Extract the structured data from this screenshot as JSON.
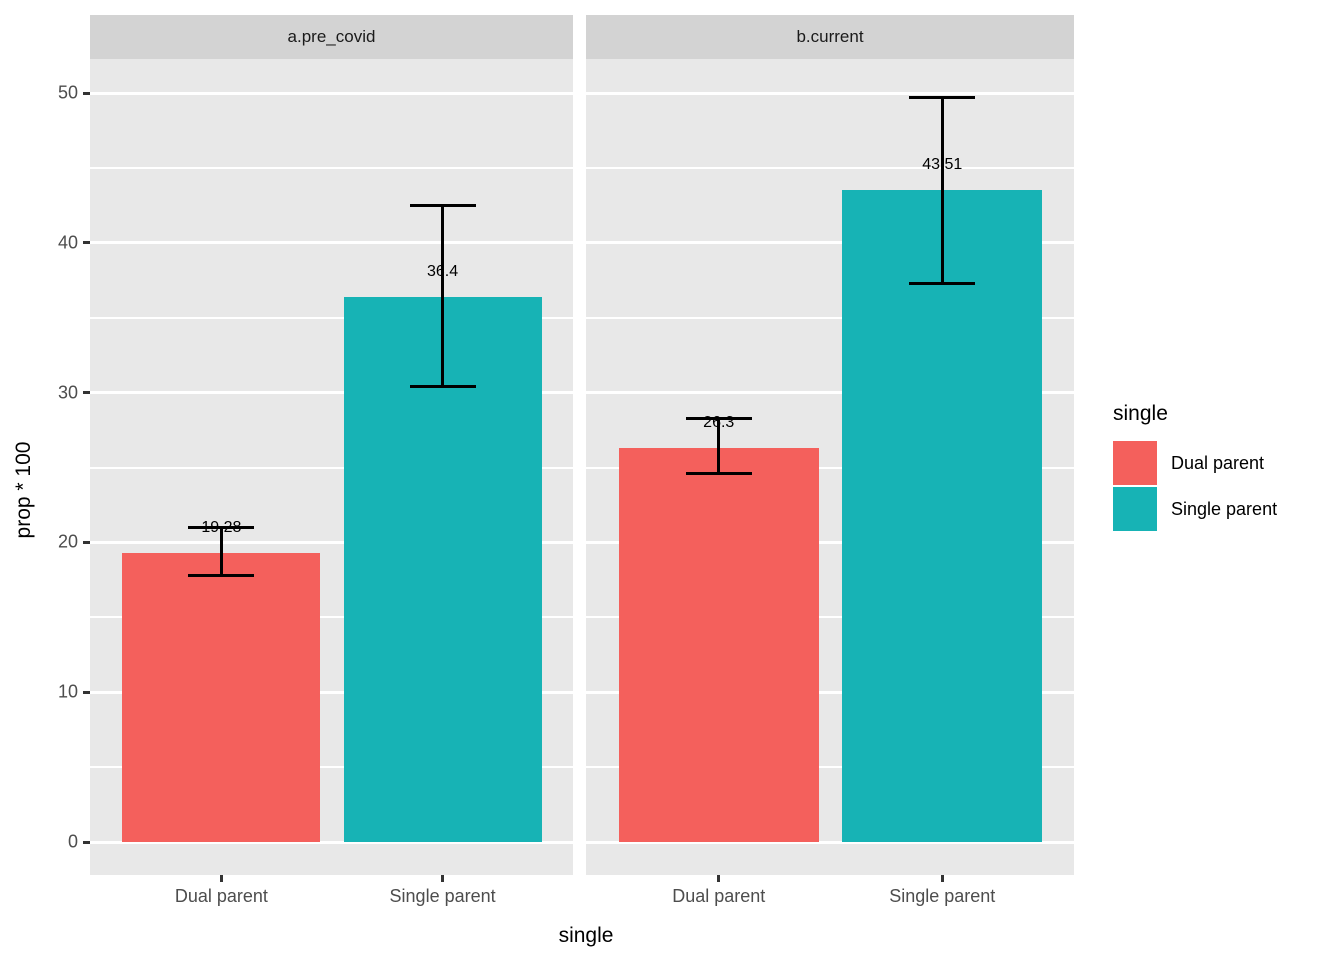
{
  "chart_data": {
    "type": "bar",
    "title": "",
    "xlabel": "single",
    "ylabel": "prop * 100",
    "y_ticks": [
      0,
      10,
      20,
      30,
      40,
      50
    ],
    "y_minor_ticks": [
      5,
      15,
      25,
      35,
      45
    ],
    "ylim": [
      -2.2,
      52.3
    ],
    "grid": "white major and minor gridlines on grey panel",
    "legend_position": "right",
    "legend": {
      "title": "single",
      "items": [
        {
          "label": "Dual parent",
          "color": "#F4605C"
        },
        {
          "label": "Single parent",
          "color": "#17B3B5"
        }
      ]
    },
    "categories": [
      "Dual parent",
      "Single parent"
    ],
    "facets": [
      {
        "label": "a.pre_covid",
        "bars": [
          {
            "category": "Dual parent",
            "value": 19.28,
            "value_label": "19.28",
            "error_min": 17.8,
            "error_max": 21.0,
            "color": "#F4605C"
          },
          {
            "category": "Single parent",
            "value": 36.4,
            "value_label": "36.4",
            "error_min": 30.4,
            "error_max": 42.5,
            "color": "#17B3B5"
          }
        ]
      },
      {
        "label": "b.current",
        "bars": [
          {
            "category": "Dual parent",
            "value": 26.3,
            "value_label": "26.3",
            "error_min": 24.6,
            "error_max": 28.3,
            "color": "#F4605C"
          },
          {
            "category": "Single parent",
            "value": 43.51,
            "value_label": "43.51",
            "error_min": 37.3,
            "error_max": 49.7,
            "color": "#17B3B5"
          }
        ]
      }
    ]
  },
  "theme": {
    "panel_bg": "#E8E8E8",
    "strip_bg": "#D3D3D3",
    "grid_color": "#FFFFFF",
    "tick_text_color": "#4D4D4D",
    "errorbar_color": "#000000"
  }
}
